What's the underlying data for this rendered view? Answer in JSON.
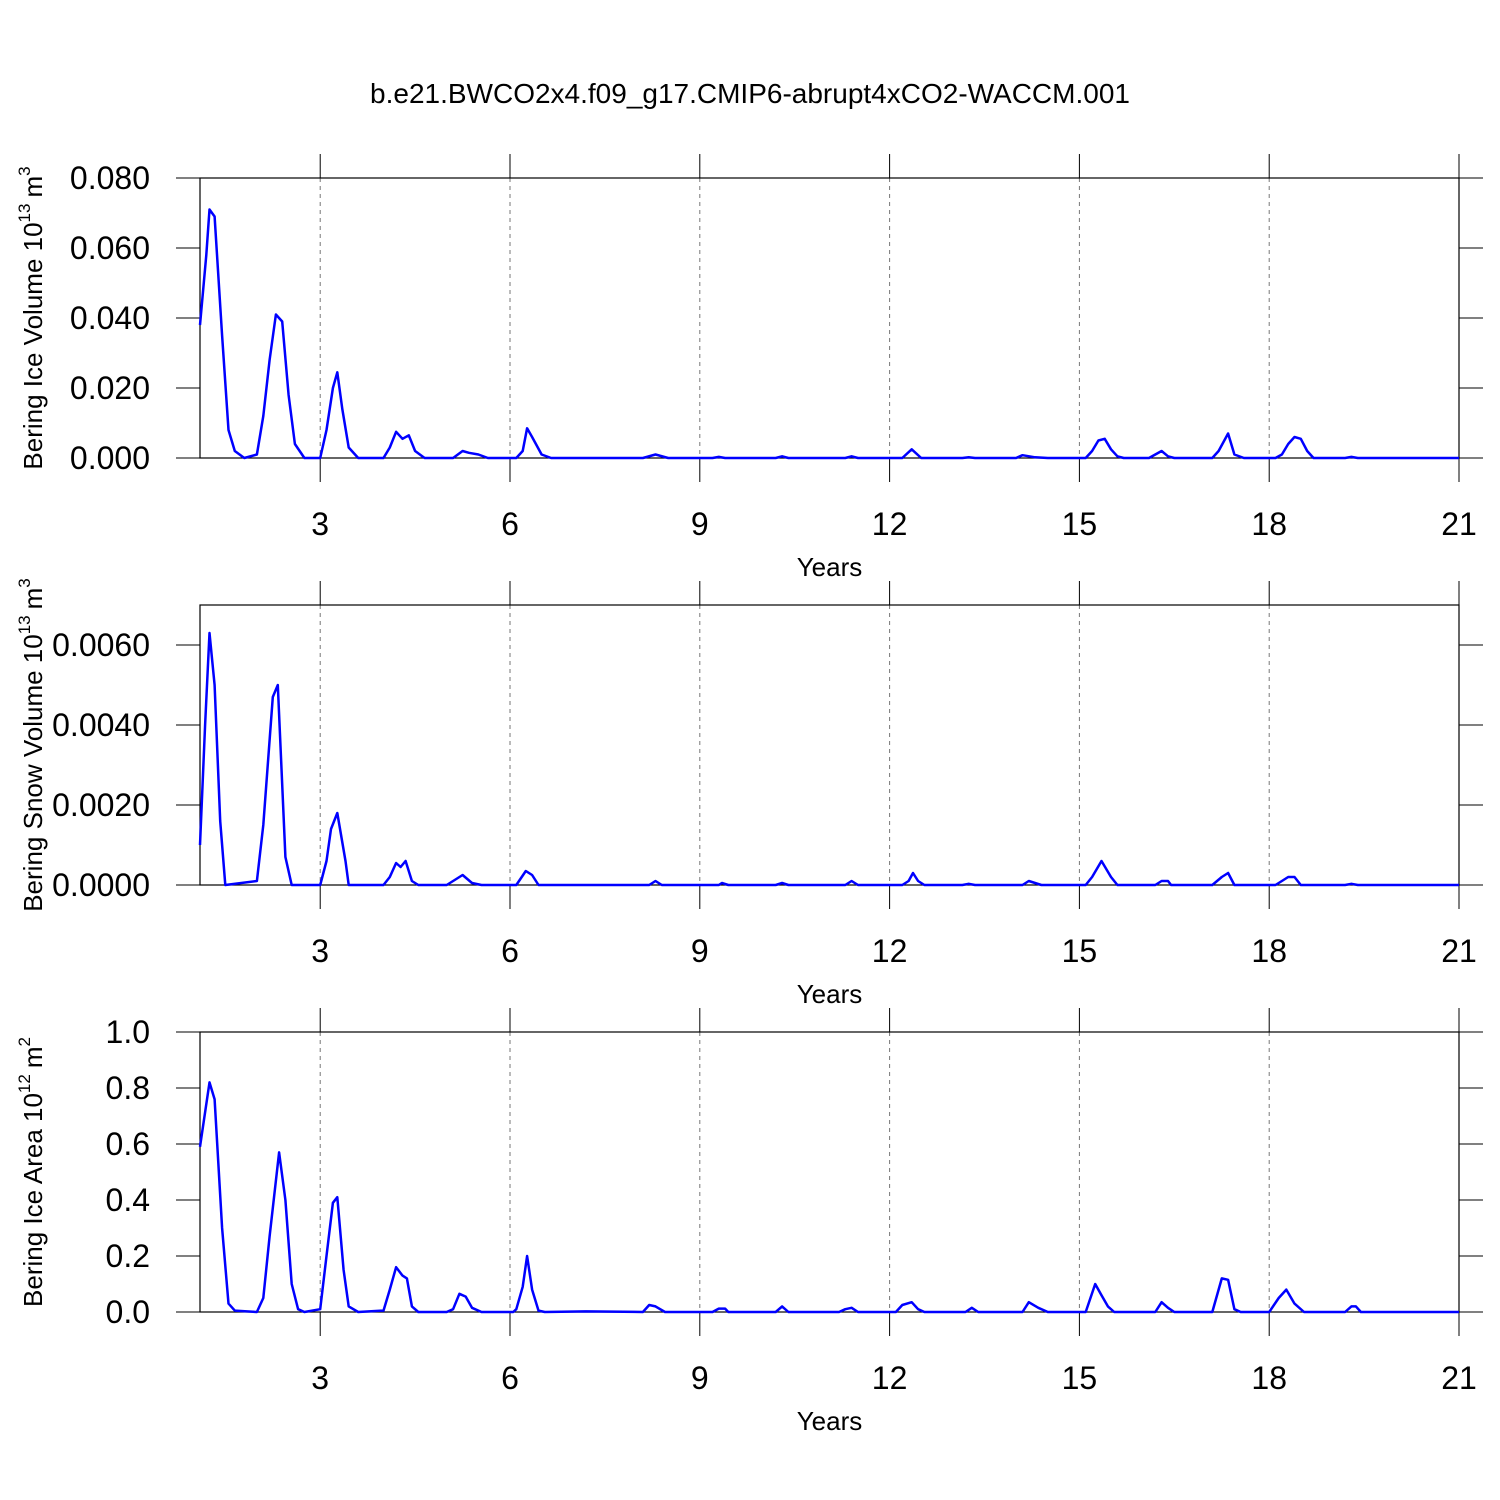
{
  "title": "b.e21.BWCO2x4.f09_g17.CMIP6-abrupt4xCO2-WACCM.001",
  "chart_data": [
    {
      "type": "line",
      "xlabel": "Years",
      "ylabel": {
        "text": "Bering Ice Volume 10",
        "exponent": "13",
        "unit": "m",
        "unit_exponent": "3"
      },
      "xlim": [
        1.1,
        21
      ],
      "xticks": [
        3,
        6,
        9,
        12,
        15,
        18,
        21
      ],
      "ylim": [
        0,
        0.08
      ],
      "yticks": [
        {
          "value": 0,
          "label": "0.000"
        },
        {
          "value": 0.02,
          "label": "0.020"
        },
        {
          "value": 0.04,
          "label": "0.040"
        },
        {
          "value": 0.06,
          "label": "0.060"
        },
        {
          "value": 0.08,
          "label": "0.080"
        }
      ],
      "grid": true,
      "color": "#0000ff",
      "x": [
        1.1,
        1.2,
        1.25,
        1.33,
        1.45,
        1.55,
        1.65,
        1.8,
        2.0,
        2.1,
        2.2,
        2.3,
        2.4,
        2.5,
        2.6,
        2.75,
        3.0,
        3.1,
        3.2,
        3.27,
        3.35,
        3.45,
        3.6,
        4.0,
        4.1,
        4.2,
        4.3,
        4.4,
        4.5,
        4.65,
        5.1,
        5.25,
        5.35,
        5.5,
        5.65,
        6.1,
        6.2,
        6.27,
        6.35,
        6.5,
        6.65,
        8.1,
        8.3,
        8.5,
        9.2,
        9.3,
        9.4,
        10.2,
        10.3,
        10.4,
        11.3,
        11.4,
        11.5,
        12.2,
        12.35,
        12.5,
        13.15,
        13.25,
        13.35,
        14.0,
        14.1,
        14.3,
        14.5,
        15.1,
        15.2,
        15.3,
        15.4,
        15.5,
        15.6,
        15.7,
        16.1,
        16.3,
        16.4,
        16.5,
        17.1,
        17.2,
        17.35,
        17.45,
        17.6,
        18.1,
        18.2,
        18.3,
        18.4,
        18.5,
        18.6,
        18.7,
        19.2,
        19.3,
        19.4,
        21
      ],
      "values": [
        0.038,
        0.058,
        0.071,
        0.069,
        0.035,
        0.008,
        0.002,
        0,
        0.001,
        0.012,
        0.028,
        0.041,
        0.039,
        0.018,
        0.004,
        0,
        0,
        0.008,
        0.02,
        0.0245,
        0.014,
        0.003,
        0,
        0,
        0.003,
        0.0075,
        0.0055,
        0.0065,
        0.002,
        0,
        0,
        0.002,
        0.0015,
        0.001,
        0,
        0,
        0.002,
        0.0085,
        0.006,
        0.001,
        0,
        0,
        0.001,
        0,
        0,
        0.0003,
        0,
        0,
        0.0005,
        0,
        0,
        0.0005,
        0,
        0,
        0.0025,
        0,
        0,
        0.0002,
        0,
        0,
        0.0008,
        0.0002,
        0,
        0,
        0.002,
        0.005,
        0.0055,
        0.0025,
        0.0005,
        0,
        0,
        0.002,
        0.0005,
        0,
        0,
        0.002,
        0.007,
        0.001,
        0,
        0,
        0.001,
        0.004,
        0.006,
        0.0055,
        0.002,
        0,
        0,
        0.0003,
        0,
        0
      ]
    },
    {
      "type": "line",
      "xlabel": "Years",
      "ylabel": {
        "text": "Bering Snow Volume 10",
        "exponent": "13",
        "unit": "m",
        "unit_exponent": "3"
      },
      "xlim": [
        1.1,
        21
      ],
      "xticks": [
        3,
        6,
        9,
        12,
        15,
        18,
        21
      ],
      "ylim": [
        0,
        0.007
      ],
      "yticks": [
        {
          "value": 0,
          "label": "0.0000"
        },
        {
          "value": 0.002,
          "label": "0.0020"
        },
        {
          "value": 0.004,
          "label": "0.0040"
        },
        {
          "value": 0.006,
          "label": "0.0060"
        }
      ],
      "grid": true,
      "color": "#0000ff",
      "x": [
        1.1,
        1.18,
        1.25,
        1.33,
        1.42,
        1.5,
        2.0,
        2.1,
        2.25,
        2.33,
        2.45,
        2.55,
        3.0,
        3.1,
        3.17,
        3.27,
        3.4,
        3.45,
        4.0,
        4.1,
        4.2,
        4.27,
        4.35,
        4.45,
        4.55,
        5.0,
        5.1,
        5.25,
        5.4,
        5.55,
        6.1,
        6.25,
        6.35,
        6.45,
        8.2,
        8.3,
        8.4,
        9.3,
        9.35,
        9.45,
        10.2,
        10.3,
        10.4,
        11.3,
        11.4,
        11.5,
        12.2,
        12.3,
        12.37,
        12.45,
        12.55,
        13.15,
        13.25,
        13.35,
        14.1,
        14.2,
        14.4,
        15.1,
        15.2,
        15.35,
        15.5,
        15.6,
        16.2,
        16.3,
        16.4,
        16.45,
        17.1,
        17.25,
        17.35,
        17.45,
        18.1,
        18.2,
        18.3,
        18.4,
        18.5,
        19.2,
        19.3,
        19.4,
        21
      ],
      "values": [
        0.001,
        0.004,
        0.0063,
        0.005,
        0.0016,
        0,
        0.0001,
        0.0015,
        0.0047,
        0.005,
        0.0007,
        0,
        0,
        0.0006,
        0.0014,
        0.0018,
        0.0006,
        0,
        0,
        0.0002,
        0.00055,
        0.00045,
        0.0006,
        0.0001,
        0,
        0,
        0.0001,
        0.00025,
        5e-05,
        0,
        0,
        0.00035,
        0.00025,
        0,
        0,
        0.0001,
        0,
        0,
        5e-05,
        0,
        0,
        5e-05,
        0,
        0,
        0.0001,
        0,
        0,
        0.0001,
        0.0003,
        0.0001,
        0,
        0,
        3e-05,
        0,
        0,
        0.0001,
        0,
        0,
        0.0002,
        0.0006,
        0.0002,
        0,
        0,
        0.0001,
        0.0001,
        0,
        0,
        0.0002,
        0.0003,
        0,
        0,
        0.0001,
        0.0002,
        0.0002,
        0,
        0,
        3e-05,
        0,
        0
      ]
    },
    {
      "type": "line",
      "xlabel": "Years",
      "ylabel": {
        "text": "Bering Ice Area 10",
        "exponent": "12",
        "unit": "m",
        "unit_exponent": "2"
      },
      "xlim": [
        1.1,
        21
      ],
      "xticks": [
        3,
        6,
        9,
        12,
        15,
        18,
        21
      ],
      "ylim": [
        0,
        1
      ],
      "yticks": [
        {
          "value": 0,
          "label": "0.0"
        },
        {
          "value": 0.2,
          "label": "0.2"
        },
        {
          "value": 0.4,
          "label": "0.4"
        },
        {
          "value": 0.6,
          "label": "0.6"
        },
        {
          "value": 0.8,
          "label": "0.8"
        },
        {
          "value": 1,
          "label": "1.0"
        }
      ],
      "grid": true,
      "color": "#0000ff",
      "x": [
        1.1,
        1.25,
        1.33,
        1.45,
        1.55,
        1.65,
        2.0,
        2.1,
        2.2,
        2.35,
        2.45,
        2.55,
        2.65,
        2.75,
        3.0,
        3.1,
        3.2,
        3.27,
        3.37,
        3.45,
        3.6,
        4.0,
        4.1,
        4.2,
        4.3,
        4.37,
        4.45,
        4.55,
        5.0,
        5.1,
        5.2,
        5.3,
        5.4,
        5.55,
        6.05,
        6.1,
        6.2,
        6.27,
        6.35,
        6.45,
        6.55,
        7.2,
        8.1,
        8.2,
        8.3,
        8.45,
        9.2,
        9.3,
        9.4,
        9.45,
        10.2,
        10.3,
        10.4,
        11.2,
        11.3,
        11.4,
        11.5,
        12.1,
        12.2,
        12.35,
        12.45,
        12.55,
        13.2,
        13.3,
        13.4,
        14.1,
        14.2,
        14.35,
        14.5,
        15.1,
        15.25,
        15.35,
        15.45,
        15.55,
        16.2,
        16.3,
        16.4,
        16.5,
        17.1,
        17.25,
        17.35,
        17.45,
        17.55,
        18.0,
        18.15,
        18.27,
        18.4,
        18.55,
        19.2,
        19.3,
        19.37,
        19.45,
        21
      ],
      "values": [
        0.59,
        0.82,
        0.76,
        0.3,
        0.03,
        0.005,
        0,
        0.05,
        0.27,
        0.57,
        0.4,
        0.1,
        0.01,
        0,
        0.01,
        0.2,
        0.39,
        0.41,
        0.15,
        0.02,
        0,
        0.005,
        0.08,
        0.16,
        0.13,
        0.12,
        0.02,
        0,
        0,
        0.01,
        0.065,
        0.055,
        0.015,
        0,
        0,
        0.01,
        0.09,
        0.2,
        0.08,
        0.005,
        0,
        0.002,
        0,
        0.025,
        0.02,
        0,
        0,
        0.012,
        0.012,
        0,
        0,
        0.02,
        0,
        0,
        0.01,
        0.015,
        0,
        0,
        0.025,
        0.035,
        0.01,
        0,
        0,
        0.015,
        0,
        0,
        0.035,
        0.015,
        0,
        0,
        0.1,
        0.06,
        0.02,
        0,
        0,
        0.035,
        0.015,
        0,
        0,
        0.12,
        0.115,
        0.01,
        0,
        0,
        0.05,
        0.08,
        0.03,
        0,
        0,
        0.02,
        0.02,
        0,
        0
      ]
    }
  ]
}
